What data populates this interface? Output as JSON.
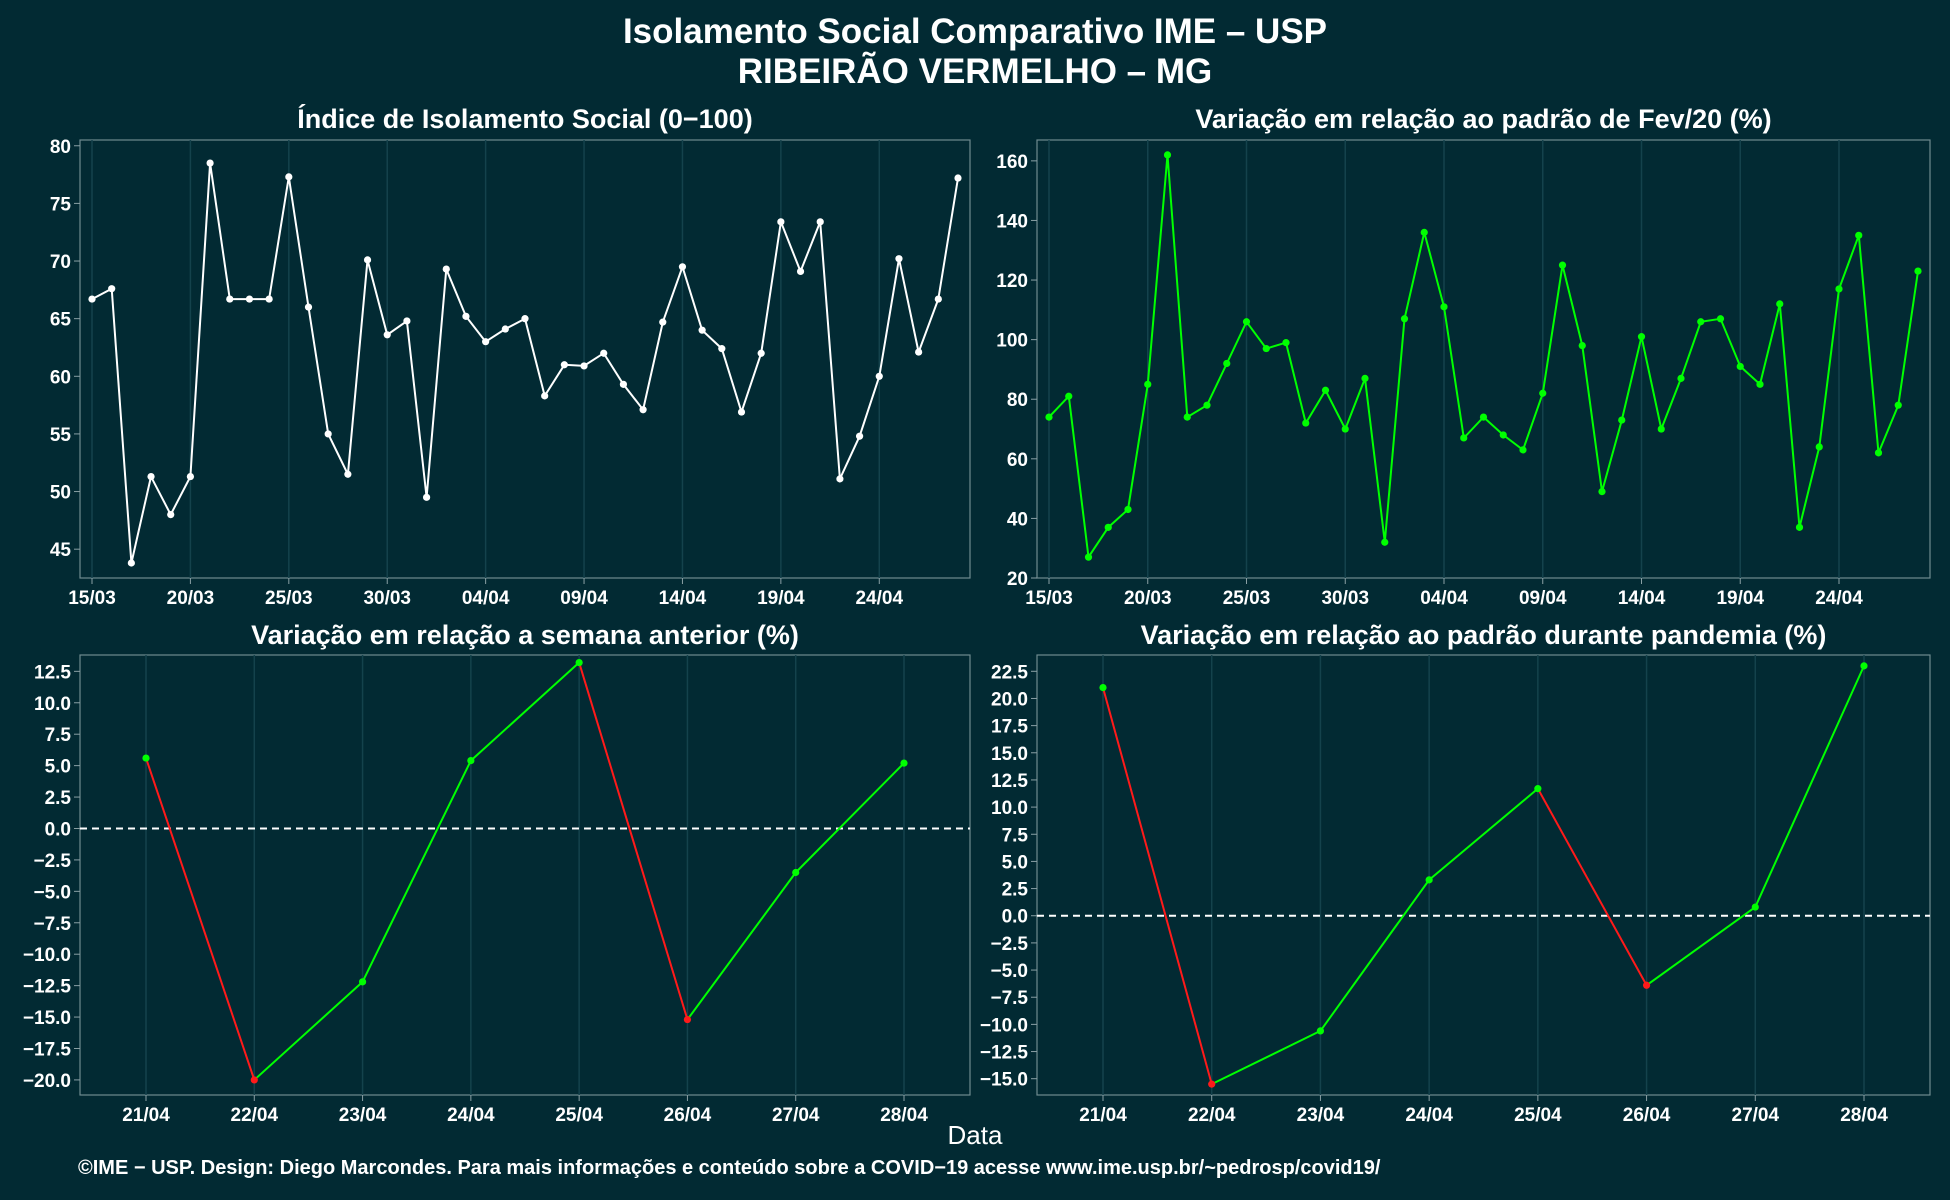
{
  "header": {
    "title": "Isolamento Social Comparativo IME – USP",
    "subtitle": "RIBEIRÃO VERMELHO – MG"
  },
  "colors": {
    "background": "#022a33",
    "white": "#ffffff",
    "green": "#00ff00",
    "red": "#ff1a1a"
  },
  "chart_data": [
    {
      "type": "line",
      "title": "Índice de Isolamento Social (0−100)",
      "x_start": "15/03",
      "x_tick_labels": [
        "15/03",
        "20/03",
        "25/03",
        "30/03",
        "04/04",
        "09/04",
        "14/04",
        "19/04",
        "24/04"
      ],
      "x_tick_index": [
        0,
        5,
        10,
        15,
        20,
        25,
        30,
        35,
        40
      ],
      "y_ticks": [
        45,
        50,
        55,
        60,
        65,
        70,
        75,
        80
      ],
      "ylim": [
        42.5,
        80.5
      ],
      "color": "#ffffff",
      "values": [
        66.7,
        67.6,
        43.8,
        51.3,
        48.0,
        51.3,
        78.5,
        66.7,
        66.7,
        66.7,
        77.3,
        66.0,
        55.0,
        51.5,
        70.1,
        63.6,
        64.8,
        49.5,
        69.3,
        65.2,
        63.0,
        64.1,
        65.0,
        58.3,
        61.0,
        60.9,
        62.0,
        59.3,
        57.1,
        64.7,
        69.5,
        64.0,
        62.4,
        56.9,
        62.0,
        73.4,
        69.1,
        73.4,
        51.1,
        54.8,
        60.0,
        70.2,
        62.1,
        66.7,
        77.2
      ]
    },
    {
      "type": "line",
      "title": "Variação em relação ao padrão de Fev/20 (%)",
      "x_start": "15/03",
      "x_tick_labels": [
        "15/03",
        "20/03",
        "25/03",
        "30/03",
        "04/04",
        "09/04",
        "14/04",
        "19/04",
        "24/04"
      ],
      "x_tick_index": [
        0,
        5,
        10,
        15,
        20,
        25,
        30,
        35,
        40
      ],
      "y_ticks": [
        20,
        40,
        60,
        80,
        100,
        120,
        140,
        160
      ],
      "ylim": [
        20,
        167
      ],
      "color": "#00ff00",
      "values": [
        74,
        81,
        27,
        37,
        43,
        85,
        162,
        74,
        78,
        92,
        106,
        97,
        99,
        72,
        83,
        70,
        87,
        32,
        107,
        136,
        111,
        67,
        74,
        68,
        63,
        82,
        125,
        98,
        49,
        73,
        101,
        70,
        87,
        106,
        107,
        91,
        85,
        112,
        37,
        64,
        117,
        135,
        62,
        78,
        123
      ]
    },
    {
      "type": "line",
      "title": "Variação em relação a semana anterior (%)",
      "categories": [
        "21/04",
        "22/04",
        "23/04",
        "24/04",
        "25/04",
        "26/04",
        "27/04",
        "28/04"
      ],
      "y_ticks": [
        -20,
        -17.5,
        -15,
        -12.5,
        -10,
        -7.5,
        -5,
        -2.5,
        0,
        2.5,
        5,
        7.5,
        10,
        12.5
      ],
      "y_tick_labels": [
        "−20.0",
        "−17.5",
        "−15.0",
        "−12.5",
        "−10.0",
        "−7.5",
        "−5.0",
        "−2.5",
        "0.0",
        "2.5",
        "5.0",
        "7.5",
        "10.0",
        "12.5"
      ],
      "ylim": [
        -21.2,
        13.8
      ],
      "values": [
        5.6,
        -20.0,
        -12.2,
        5.4,
        13.2,
        -15.2,
        -3.5,
        5.2
      ],
      "rise_color": "#00ff00",
      "fall_color": "#ff1a1a",
      "reference_line": 0
    },
    {
      "type": "line",
      "title": "Variação em relação ao padrão durante pandemia (%)",
      "categories": [
        "21/04",
        "22/04",
        "23/04",
        "24/04",
        "25/04",
        "26/04",
        "27/04",
        "28/04"
      ],
      "y_ticks": [
        -15,
        -12.5,
        -10,
        -7.5,
        -5,
        -2.5,
        0,
        2.5,
        5,
        7.5,
        10,
        12.5,
        15,
        17.5,
        20,
        22.5
      ],
      "y_tick_labels": [
        "−15.0",
        "−12.5",
        "−10.0",
        "−7.5",
        "−5.0",
        "−2.5",
        "0.0",
        "2.5",
        "5.0",
        "7.5",
        "10.0",
        "12.5",
        "15.0",
        "17.5",
        "20.0",
        "22.5"
      ],
      "ylim": [
        -16.5,
        24
      ],
      "values": [
        21.0,
        -15.5,
        -10.6,
        3.3,
        11.7,
        -6.4,
        0.8,
        23.0
      ],
      "rise_color": "#00ff00",
      "fall_color": "#ff1a1a",
      "reference_line": 0
    }
  ],
  "xlabel": "Data",
  "footer": "©IME − USP. Design: Diego Marcondes. Para mais informações e conteúdo sobre a COVID−19 acesse www.ime.usp.br/~pedrosp/covid19/"
}
